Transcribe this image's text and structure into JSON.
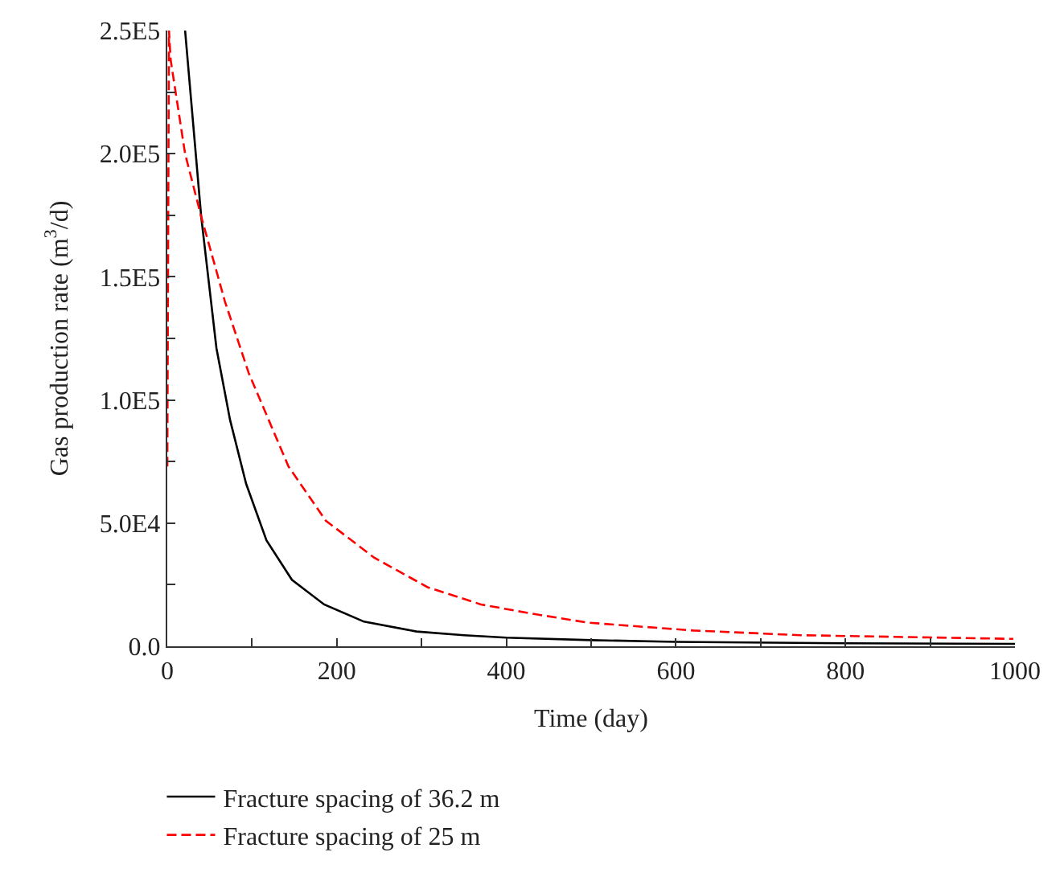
{
  "chart_data": {
    "type": "line",
    "xlabel": "Time (day)",
    "ylabel": "Gas production rate (m$^{3}$/d)",
    "xlim": [
      0,
      1000
    ],
    "xticks": [
      0,
      {
        "value": 100,
        "label": null
      },
      200,
      {
        "value": 300,
        "label": null
      },
      400,
      {
        "value": 500,
        "label": null
      },
      600,
      {
        "value": 700,
        "label": null
      },
      800,
      {
        "value": 900,
        "label": null
      },
      1000
    ],
    "ylim": [
      0,
      250000
    ],
    "yticks": [
      {
        "value": 0,
        "label": "0.0"
      },
      {
        "value": 25000,
        "label": null
      },
      {
        "value": 50000,
        "label": "5.0E4"
      },
      {
        "value": 75000,
        "label": null
      },
      {
        "value": 100000,
        "label": "1.0E5"
      },
      {
        "value": 125000,
        "label": null
      },
      {
        "value": 150000,
        "label": "1.5E5"
      },
      {
        "value": 175000,
        "label": null
      },
      {
        "value": 200000,
        "label": "2.0E5"
      },
      {
        "value": 225000,
        "label": null
      },
      {
        "value": 250000,
        "label": "2.5E5"
      }
    ],
    "legend": "bottom left",
    "marker": "none",
    "series": [
      {
        "name": "Fracture spacing of 36.2 m",
        "color": "#000000",
        "line_style": "solid",
        "x": [
          21,
          40,
          58,
          74,
          93,
          117,
          147,
          185,
          232,
          294,
          350,
          400,
          500,
          600,
          800,
          1000
        ],
        "values": [
          250000,
          174500,
          121000,
          92000,
          66000,
          43000,
          27000,
          17000,
          10000,
          6000,
          4500,
          3500,
          2500,
          1800,
          1200,
          1000
        ]
      },
      {
        "name": "Fracture spacing of 25 m",
        "color": "#ff0000",
        "line_style": "dashed",
        "x": [
          0,
          2,
          4,
          21,
          40,
          68,
          96,
          143,
          187,
          244,
          307,
          370,
          426,
          496,
          621,
          747,
          998
        ],
        "values": [
          73000,
          250000,
          238000,
          200000,
          174500,
          140000,
          111000,
          73000,
          51000,
          36000,
          24000,
          17000,
          13500,
          9600,
          6400,
          4500,
          3000
        ]
      }
    ]
  }
}
